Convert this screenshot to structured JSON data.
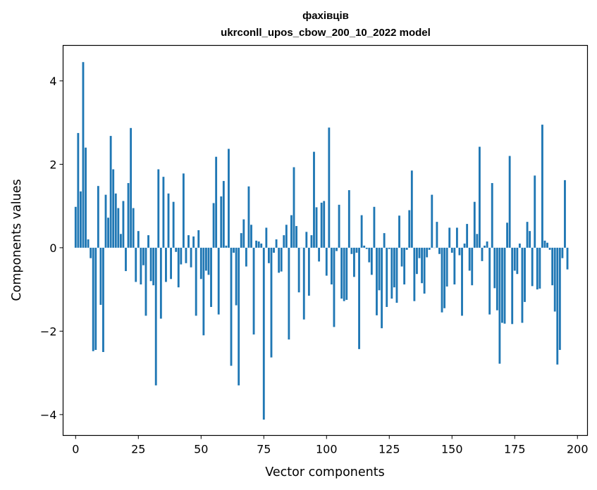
{
  "chart_data": {
    "type": "bar",
    "title": "фахівців",
    "subtitle": "ukrconll_upos_cbow_200_10_2022 model",
    "xlabel": "Vector components",
    "ylabel": "Components values",
    "xlim": [
      -5,
      204
    ],
    "ylim": [
      -4.5,
      4.85
    ],
    "xticks": [
      0,
      25,
      50,
      75,
      100,
      125,
      150,
      175,
      200
    ],
    "yticks": [
      -4,
      -2,
      0,
      2,
      4
    ],
    "xtick_labels": [
      "0",
      "25",
      "50",
      "75",
      "100",
      "125",
      "150",
      "175",
      "200"
    ],
    "ytick_labels": [
      "−4",
      "−2",
      "0",
      "2",
      "4"
    ],
    "bar_color": "#1f77b4",
    "grid": false,
    "values": [
      0.98,
      2.75,
      1.35,
      4.45,
      2.4,
      0.2,
      -0.25,
      -2.48,
      -2.45,
      1.48,
      -1.37,
      -2.5,
      1.27,
      0.72,
      2.68,
      1.88,
      1.3,
      0.95,
      0.33,
      1.12,
      -0.56,
      1.55,
      2.87,
      0.95,
      -0.82,
      0.4,
      -0.88,
      -0.42,
      -1.63,
      0.3,
      -0.8,
      -0.9,
      -3.3,
      1.88,
      -1.7,
      1.7,
      -0.82,
      1.3,
      -0.75,
      1.1,
      -0.1,
      -0.95,
      -0.4,
      1.78,
      -0.37,
      0.3,
      -0.47,
      0.27,
      -1.63,
      0.42,
      -0.75,
      -2.1,
      -0.55,
      -0.65,
      -1.42,
      1.07,
      2.18,
      -1.6,
      1.23,
      1.6,
      0.05,
      2.37,
      -2.83,
      -0.12,
      -1.38,
      -3.3,
      0.35,
      0.68,
      -0.45,
      1.47,
      0.55,
      -2.08,
      0.17,
      0.15,
      0.1,
      -4.12,
      0.48,
      -0.37,
      -2.63,
      -0.12,
      0.2,
      -0.6,
      -0.57,
      0.3,
      0.55,
      -2.2,
      0.78,
      1.93,
      0.52,
      -1.07,
      0.0,
      -1.72,
      0.38,
      -1.15,
      0.3,
      2.3,
      0.97,
      -0.33,
      1.08,
      1.12,
      -0.67,
      2.88,
      -0.88,
      -1.9,
      -0.08,
      1.03,
      -1.22,
      -1.28,
      -1.25,
      1.38,
      -0.15,
      -0.7,
      -0.12,
      -2.43,
      0.78,
      0.05,
      -0.03,
      -0.35,
      -0.65,
      0.98,
      -1.62,
      -1.02,
      -1.93,
      0.35,
      -1.42,
      -0.03,
      -1.22,
      -0.95,
      -1.32,
      0.77,
      -0.45,
      -0.88,
      -0.05,
      0.9,
      1.85,
      -1.28,
      -0.63,
      -0.25,
      -0.85,
      -1.1,
      -0.23,
      -0.05,
      1.27,
      0.0,
      0.62,
      -0.15,
      -1.55,
      -1.45,
      -0.93,
      0.48,
      -0.12,
      -0.88,
      0.48,
      -0.18,
      -1.63,
      0.1,
      0.57,
      -0.55,
      -0.9,
      1.1,
      0.33,
      2.42,
      -0.32,
      0.05,
      0.15,
      -1.6,
      1.55,
      -0.97,
      -1.5,
      -2.78,
      -1.8,
      -1.82,
      0.6,
      2.2,
      -1.83,
      -0.55,
      -0.63,
      0.1,
      -1.8,
      -1.3,
      0.62,
      0.4,
      -0.92,
      1.73,
      -1.0,
      -0.98,
      2.95,
      0.17,
      0.12,
      -0.05,
      -0.9,
      -1.53,
      -2.8,
      -2.45,
      -0.25,
      1.62,
      -0.52
    ]
  }
}
